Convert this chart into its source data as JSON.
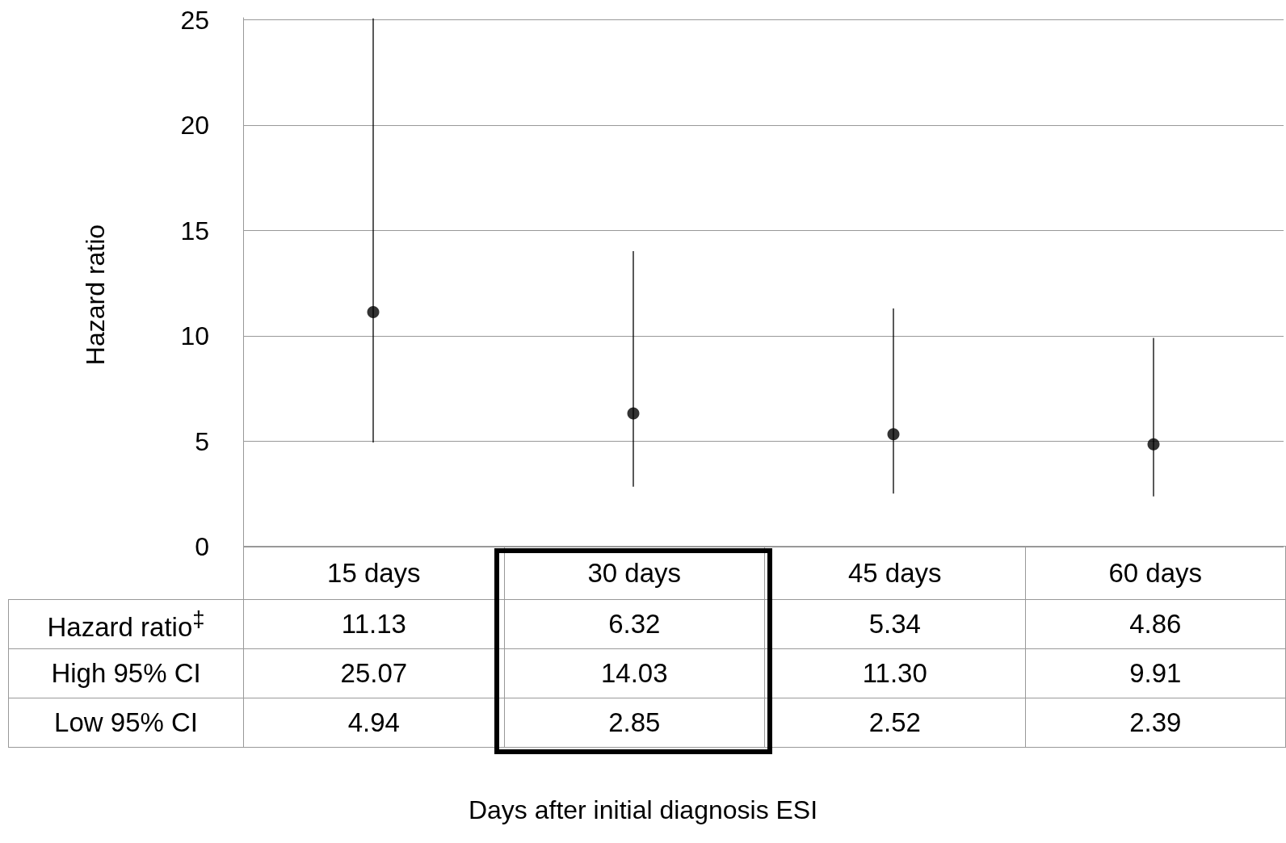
{
  "chart_data": {
    "type": "scatter",
    "ylabel": "Hazard ratio",
    "categories": [
      "15 days",
      "30 days",
      "45 days",
      "60 days"
    ],
    "series": [
      {
        "name": "Hazard ratio$^{‡}$",
        "color": "#000000",
        "values": [
          11.13,
          6.32,
          5.34,
          4.86
        ],
        "errors": [
          [
            4.94,
            25.07
          ],
          [
            2.85,
            14.03
          ],
          [
            2.52,
            11.3
          ],
          [
            2.39,
            9.91
          ]
        ]
      }
    ],
    "annotations": [
      "High 95% CI",
      "25.07",
      "14.03",
      "11.30",
      "9.91",
      "Low 95% CI",
      "4.94",
      "2.85",
      "2.52",
      "2.39",
      "Days after initial diagnosis ESI"
    ],
    "ylim": [
      0,
      25.1
    ],
    "yticks": [
      0,
      5,
      10,
      15,
      20,
      25
    ],
    "grid": "y",
    "legend": false,
    "marker": "circle",
    "data_labels": true
  }
}
